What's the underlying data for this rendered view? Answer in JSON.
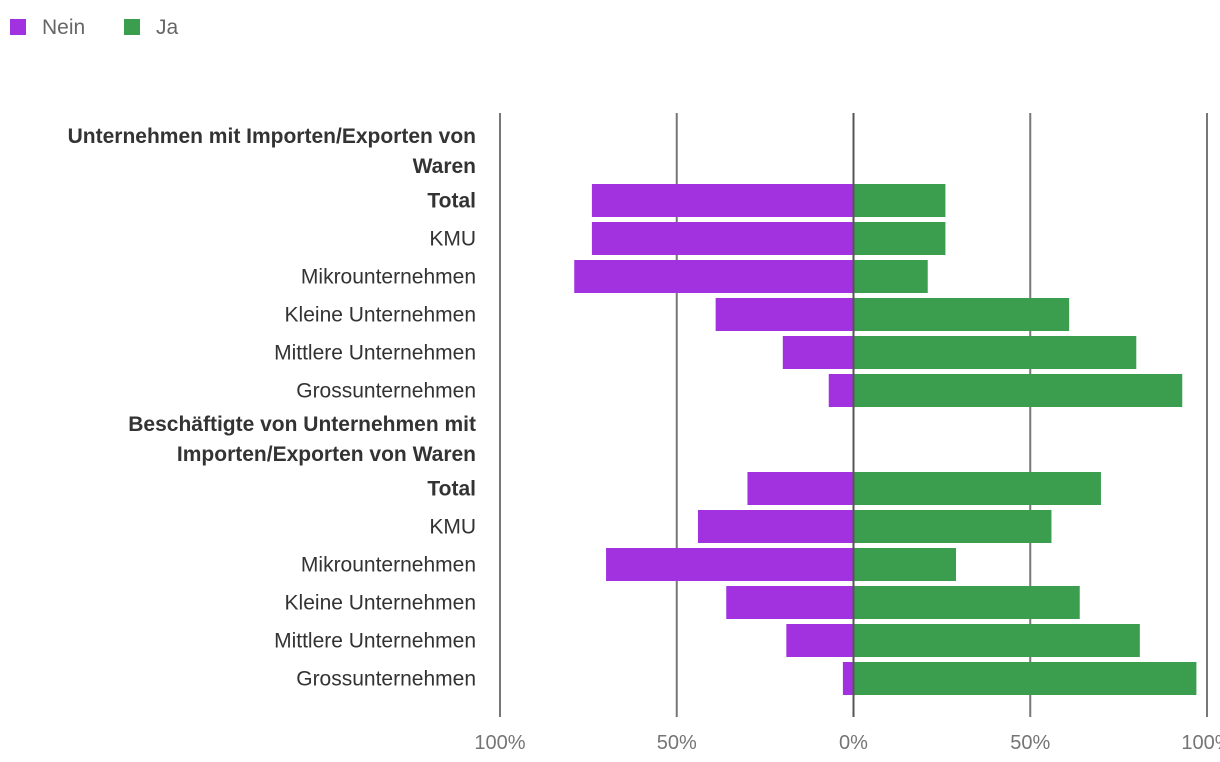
{
  "chart_data": {
    "type": "bar",
    "orientation": "horizontal-diverging",
    "legend": [
      {
        "name": "Nein",
        "color": "#a232e0"
      },
      {
        "name": "Ja",
        "color": "#3a9e4e"
      }
    ],
    "legend_position": "top-left",
    "groups": [
      {
        "title": "Unternehmen mit Importen/Exporten von Waren",
        "title_lines": [
          "Unternehmen mit Importen/Exporten von",
          "Waren"
        ],
        "rows": [
          {
            "label": "Total",
            "bold": true,
            "nein": 74,
            "ja": 26
          },
          {
            "label": "KMU",
            "bold": false,
            "nein": 74,
            "ja": 26
          },
          {
            "label": "Mikrounternehmen",
            "bold": false,
            "nein": 79,
            "ja": 21
          },
          {
            "label": "Kleine Unternehmen",
            "bold": false,
            "nein": 39,
            "ja": 61
          },
          {
            "label": "Mittlere Unternehmen",
            "bold": false,
            "nein": 20,
            "ja": 80
          },
          {
            "label": "Grossunternehmen",
            "bold": false,
            "nein": 7,
            "ja": 93
          }
        ]
      },
      {
        "title": "Beschäftigte von Unternehmen mit Importen/Exporten von Waren",
        "title_lines": [
          "Beschäftigte von Unternehmen mit",
          "Importen/Exporten von Waren"
        ],
        "rows": [
          {
            "label": "Total",
            "bold": true,
            "nein": 30,
            "ja": 70
          },
          {
            "label": "KMU",
            "bold": false,
            "nein": 44,
            "ja": 56
          },
          {
            "label": "Mikrounternehmen",
            "bold": false,
            "nein": 70,
            "ja": 29
          },
          {
            "label": "Kleine Unternehmen",
            "bold": false,
            "nein": 36,
            "ja": 64
          },
          {
            "label": "Mittlere Unternehmen",
            "bold": false,
            "nein": 19,
            "ja": 81
          },
          {
            "label": "Grossunternehmen",
            "bold": false,
            "nein": 3,
            "ja": 97
          }
        ]
      }
    ],
    "xlim": [
      -100,
      100
    ],
    "x_ticks": [
      -100,
      -50,
      0,
      50,
      100
    ],
    "x_tick_labels": [
      "100%",
      "50%",
      "0%",
      "50%",
      "100%"
    ],
    "grid": true
  }
}
